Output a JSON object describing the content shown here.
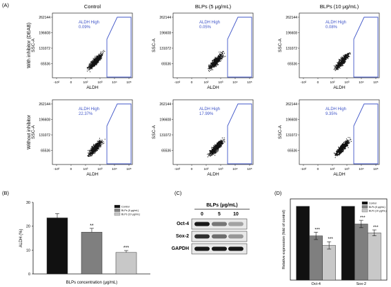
{
  "panels": {
    "a": "(A)",
    "b": "(B)",
    "c": "(C)",
    "d": "(D)"
  },
  "flow": {
    "col_titles": [
      "Control",
      "BLPs (5 μg/mL)",
      "BLPs (10 μg/mL)"
    ],
    "row_titles": [
      "With inhibitor (DEAB)",
      "Without inhibitor"
    ],
    "gate_label": "ALDH High",
    "percents": [
      [
        "0.09%",
        "0.05%",
        "0.08%"
      ],
      [
        "22.37%",
        "17.99%",
        "9.35%"
      ]
    ],
    "xlabel": "ALDH",
    "ylabel": "SSC-A",
    "yticks": [
      "262144",
      "196608",
      "131072",
      "65536"
    ],
    "xticks": [
      "-10²",
      "0",
      "10²",
      "10³",
      "10⁴",
      "10⁵"
    ]
  },
  "chart_data": [
    {
      "type": "bar",
      "panel": "B",
      "categories": [
        "Control",
        "BLPs (5 μg/mL)",
        "BLPs (10 μg/mL)"
      ],
      "values": [
        23.5,
        17.5,
        9.0
      ],
      "errors": [
        1.8,
        1.6,
        0.8
      ],
      "significance": [
        "",
        "**",
        "***"
      ],
      "colors": [
        "#111111",
        "#7f7f7f",
        "#c8c8c8"
      ],
      "xlabel": "BLPs concentration (μg/mL)",
      "ylabel": "ALDH (%)",
      "ylim": [
        0,
        30
      ],
      "legend": [
        "Control",
        "BLPs (5 μg/mL)",
        "BLPs (10 μg/mL)"
      ],
      "legend_position": "top-right"
    },
    {
      "type": "bar",
      "panel": "D",
      "categories": [
        "Oct-4",
        "Sox-2"
      ],
      "series": [
        {
          "name": "Control",
          "values": [
            1.0,
            1.0
          ],
          "errors": [
            0,
            0
          ],
          "color": "#111111"
        },
        {
          "name": "BLPs (5 μg/mL)",
          "values": [
            0.6,
            0.76
          ],
          "errors": [
            0.05,
            0.05
          ],
          "color": "#7f7f7f"
        },
        {
          "name": "BLPs (10 μg/mL)",
          "values": [
            0.47,
            0.64
          ],
          "errors": [
            0.05,
            0.04
          ],
          "color": "#c8c8c8"
        }
      ],
      "significance": [
        [
          "",
          "***",
          "***"
        ],
        [
          "",
          "***",
          "***"
        ]
      ],
      "xlabel": "",
      "ylabel": "Relative expression (fold of control)",
      "ylim": [
        0,
        1.1
      ],
      "legend_position": "top-right"
    }
  ],
  "blot": {
    "title": "BLPs (μg/mL)",
    "lanes": [
      "0",
      "5",
      "10"
    ],
    "rows": [
      "Oct-4",
      "Sox-2",
      "GAPDH"
    ],
    "intensity": [
      [
        1.0,
        0.55,
        0.35
      ],
      [
        0.9,
        0.6,
        0.4
      ],
      [
        1.0,
        1.0,
        1.0
      ]
    ]
  }
}
